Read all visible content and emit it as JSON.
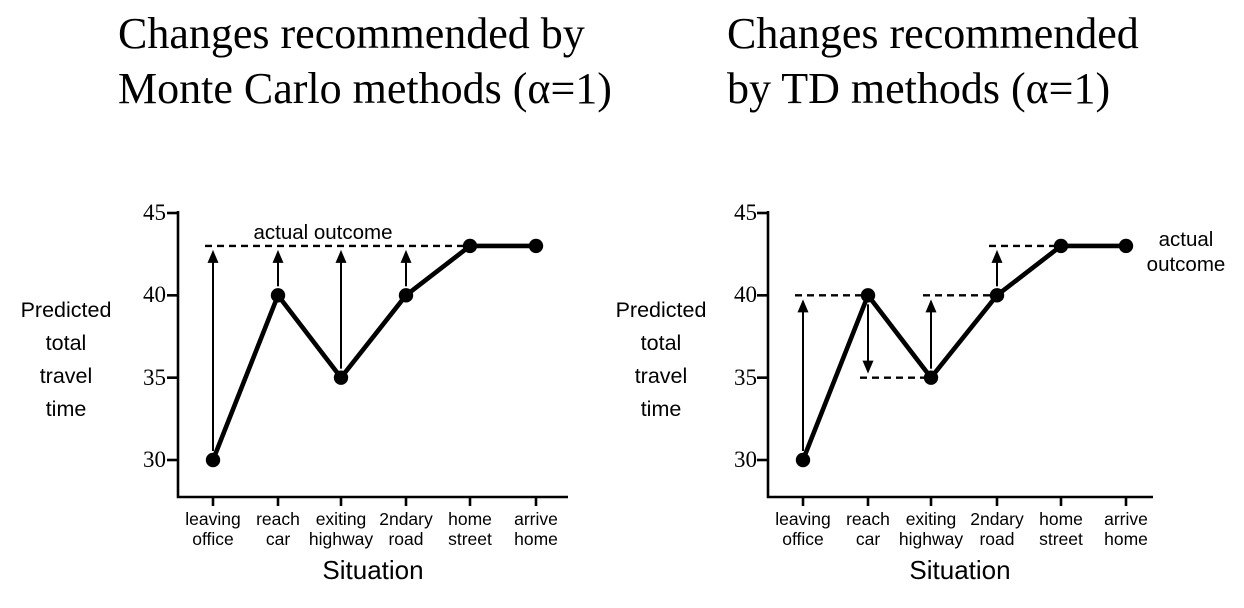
{
  "chart_data": [
    {
      "type": "line",
      "title": "Changes recommended by Monte Carlo methods (α=1)",
      "title_lines": [
        "Changes recommended by",
        "Monte Carlo methods (α=1)"
      ],
      "ylabel": "Predicted total travel time",
      "ylabel_lines": [
        "Predicted",
        "total",
        "travel",
        "time"
      ],
      "xlabel": "Situation",
      "categories": [
        "leaving office",
        "reach car",
        "exiting highway",
        "2ndary road",
        "home street",
        "arrive home"
      ],
      "category_lines": [
        [
          "leaving",
          "office"
        ],
        [
          "reach",
          "car"
        ],
        [
          "exiting",
          "highway"
        ],
        [
          "2ndary",
          "road"
        ],
        [
          "home",
          "street"
        ],
        [
          "arrive",
          "home"
        ]
      ],
      "values": [
        30,
        40,
        35,
        40,
        43,
        43
      ],
      "yticks": [
        45,
        40,
        35,
        30
      ],
      "ylim": [
        27.5,
        45
      ],
      "actual_outcome": 43,
      "annotation": "actual outcome",
      "annotation_lines": [
        "actual outcome"
      ],
      "dashed_segments": [
        {
          "value": 43,
          "from_index": 0,
          "to_index": 4
        }
      ],
      "arrows": [
        {
          "index": 0,
          "from": 30,
          "to": 43,
          "direction": "up"
        },
        {
          "index": 1,
          "from": 40,
          "to": 43,
          "direction": "up"
        },
        {
          "index": 2,
          "from": 35,
          "to": 43,
          "direction": "up"
        },
        {
          "index": 3,
          "from": 40,
          "to": 43,
          "direction": "up"
        }
      ],
      "line_color": "#000000",
      "background_color": "#ffffff",
      "grid": false,
      "legend": "none"
    },
    {
      "type": "line",
      "title": "Changes recommended by TD methods (α=1)",
      "title_lines": [
        "Changes recommended",
        "by TD methods (α=1)"
      ],
      "ylabel": "Predicted total travel time",
      "ylabel_lines": [
        "Predicted",
        "total",
        "travel",
        "time"
      ],
      "xlabel": "Situation",
      "categories": [
        "leaving office",
        "reach car",
        "exiting highway",
        "2ndary road",
        "home street",
        "arrive home"
      ],
      "category_lines": [
        [
          "leaving",
          "office"
        ],
        [
          "reach",
          "car"
        ],
        [
          "exiting",
          "highway"
        ],
        [
          "2ndary",
          "road"
        ],
        [
          "home",
          "street"
        ],
        [
          "arrive",
          "home"
        ]
      ],
      "values": [
        30,
        40,
        35,
        40,
        43,
        43
      ],
      "yticks": [
        45,
        40,
        35,
        30
      ],
      "ylim": [
        27.5,
        45
      ],
      "actual_outcome": 43,
      "annotation": "actual outcome",
      "annotation_lines": [
        "actual",
        "outcome"
      ],
      "dashed_segments": [
        {
          "value": 40,
          "from_index": 0,
          "to_index": 1
        },
        {
          "value": 35,
          "from_index": 1,
          "to_index": 2
        },
        {
          "value": 40,
          "from_index": 2,
          "to_index": 3
        },
        {
          "value": 43,
          "from_index": 3,
          "to_index": 4
        }
      ],
      "arrows": [
        {
          "index": 0,
          "from": 30,
          "to": 40,
          "direction": "up"
        },
        {
          "index": 1,
          "from": 40,
          "to": 35,
          "direction": "down"
        },
        {
          "index": 2,
          "from": 35,
          "to": 40,
          "direction": "up"
        },
        {
          "index": 3,
          "from": 40,
          "to": 43,
          "direction": "up"
        }
      ],
      "line_color": "#000000",
      "background_color": "#ffffff",
      "grid": false,
      "legend": "none"
    }
  ]
}
